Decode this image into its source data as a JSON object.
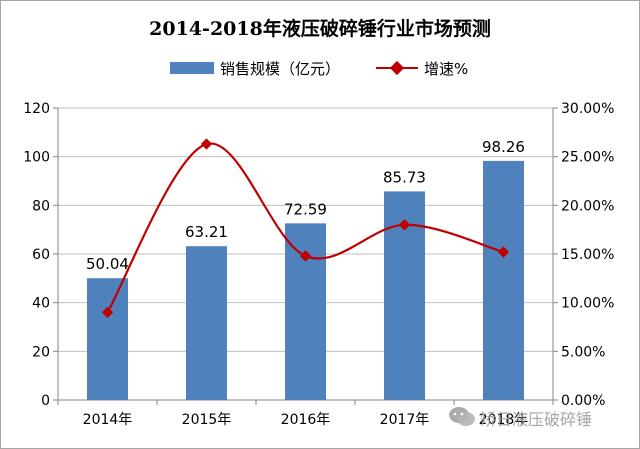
{
  "chart_data": {
    "type": "bar+line",
    "title": "2014-2018年液压破碎锤行业市场预测",
    "categories": [
      "2014年",
      "2015年",
      "2016年",
      "2017年",
      "2018年"
    ],
    "series": [
      {
        "name": "销售规模（亿元）",
        "type": "bar",
        "axis": "left",
        "color": "#4f81bd",
        "values": [
          50.04,
          63.21,
          72.59,
          85.73,
          98.26
        ],
        "labels": [
          "50.04",
          "63.21",
          "72.59",
          "85.73",
          "98.26"
        ]
      },
      {
        "name": "增速%",
        "type": "line",
        "axis": "right",
        "color": "#c00000",
        "values": [
          0.09,
          0.263,
          0.148,
          0.18,
          0.152
        ]
      }
    ],
    "y_left": {
      "min": 0,
      "max": 120,
      "ticks": [
        "0",
        "20",
        "40",
        "60",
        "80",
        "100",
        "120"
      ]
    },
    "y_right": {
      "min": 0,
      "max": 0.3,
      "ticks": [
        "0.00%",
        "5.00%",
        "10.00%",
        "15.00%",
        "20.00%",
        "25.00%",
        "30.00%"
      ]
    },
    "grid": true,
    "legend_position": "top"
  },
  "watermark": {
    "text": "矫日液压破碎锤",
    "icon": "wechat-icon"
  }
}
